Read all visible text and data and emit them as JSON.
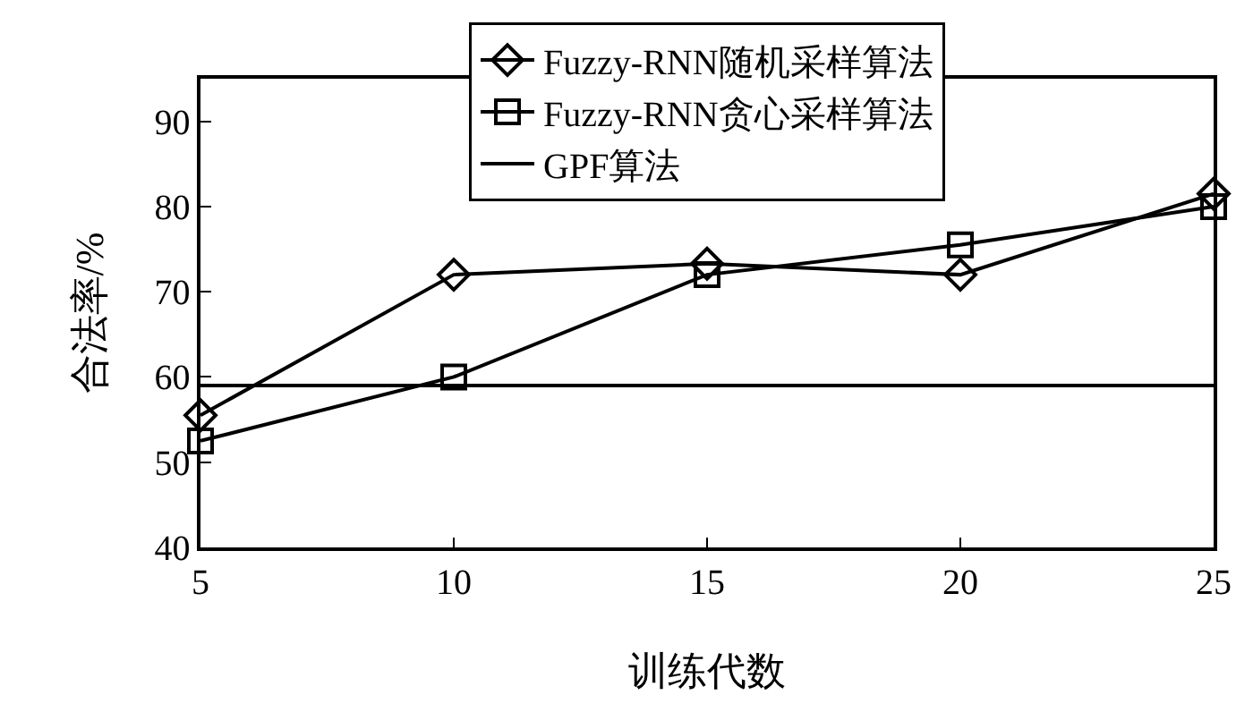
{
  "chart_data": {
    "type": "line",
    "xlabel": "训练代数",
    "ylabel": "合法率/%",
    "x": [
      5,
      10,
      15,
      20,
      25
    ],
    "series": [
      {
        "name": "Fuzzy-RNN随机采样算法",
        "color": "#000000",
        "marker": "diamond",
        "values": [
          55.5,
          72,
          73.3,
          72,
          81.5
        ]
      },
      {
        "name": "Fuzzy-RNN贪心采样算法",
        "color": "#000000",
        "marker": "square",
        "values": [
          52.5,
          60,
          72,
          75.5,
          80
        ]
      },
      {
        "name": "GPF算法",
        "color": "#000000",
        "marker": "none",
        "values": [
          59,
          59,
          59,
          59,
          59
        ]
      }
    ],
    "xlim": [
      5,
      25
    ],
    "xticks": [
      5,
      10,
      15,
      20,
      25
    ],
    "ylim": [
      40,
      95
    ],
    "yticks": [
      40,
      50,
      60,
      70,
      80,
      90
    ],
    "grid": false,
    "legend": "top",
    "line_style": "solid"
  }
}
